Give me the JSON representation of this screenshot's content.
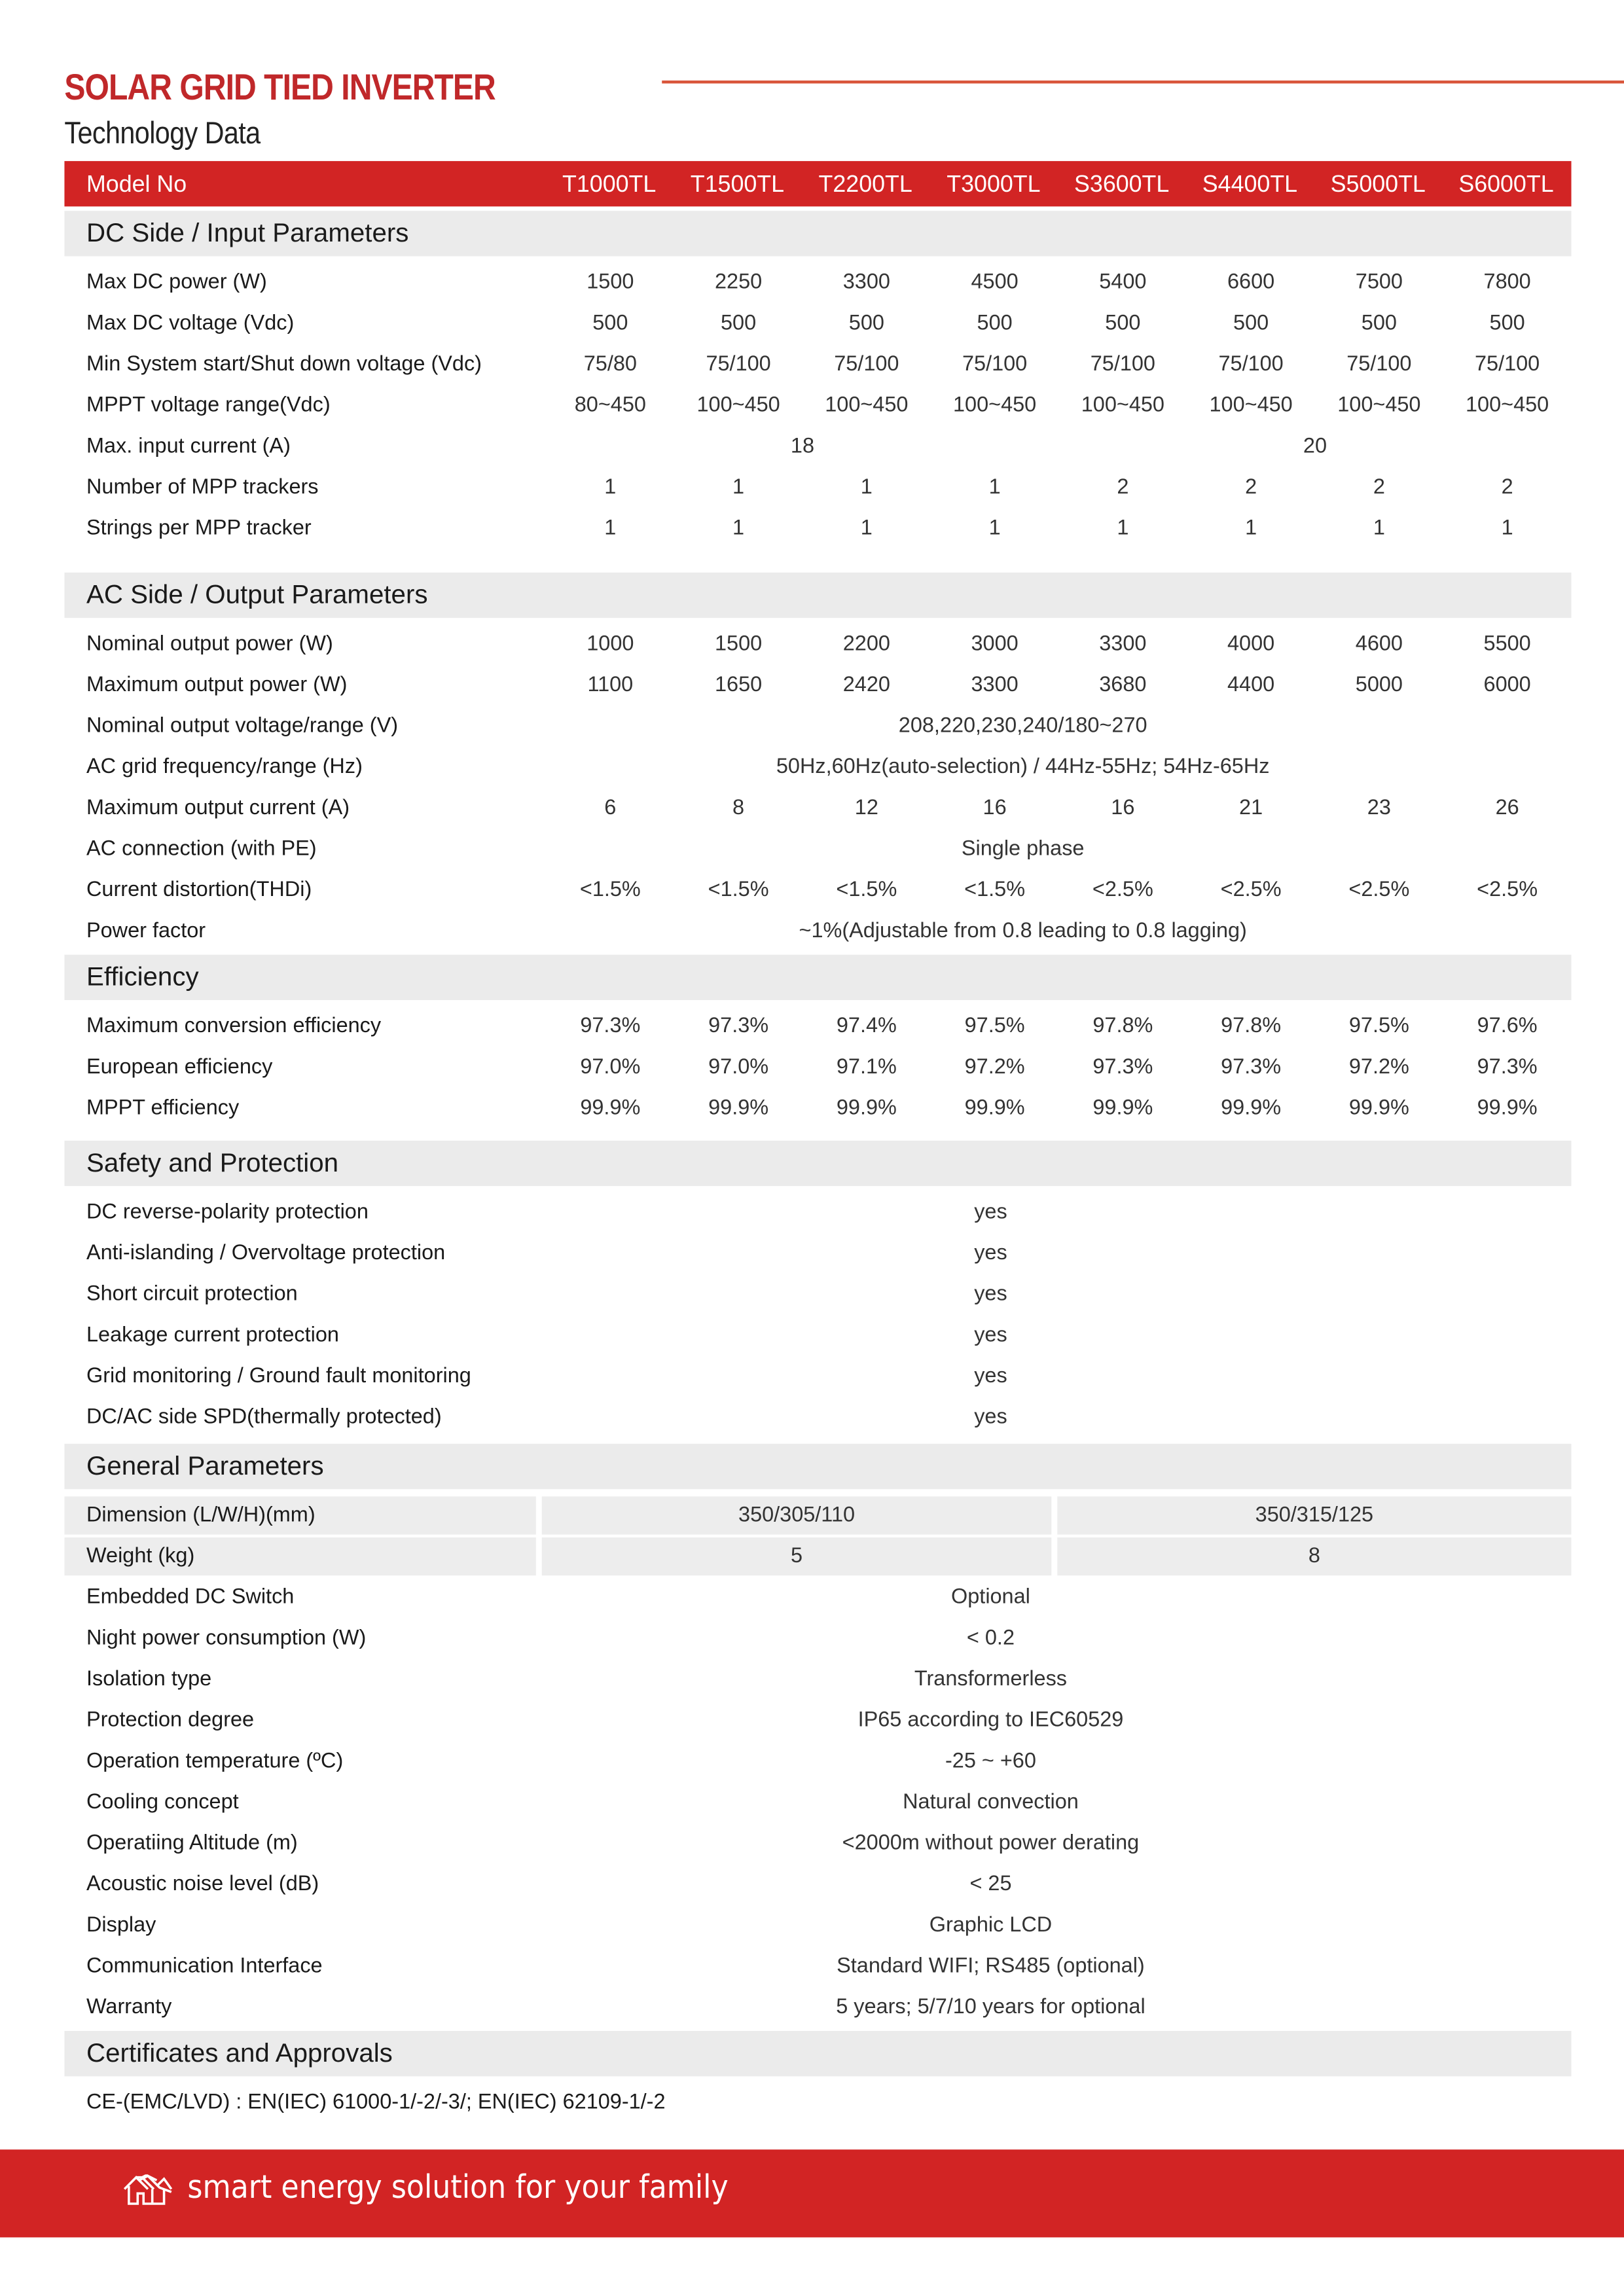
{
  "title": "SOLAR GRID TIED INVERTER",
  "subtitle": "Technology Data",
  "colors": {
    "accent": "#d22424",
    "title": "#c0282a",
    "section_bg": "#ebebeb"
  },
  "header": {
    "label": "Model No",
    "models": [
      "T1000TL",
      "T1500TL",
      "T2200TL",
      "T3000TL",
      "S3600TL",
      "S4400TL",
      "S5000TL",
      "S6000TL"
    ]
  },
  "sections": [
    {
      "title": "DC Side / Input Parameters",
      "rows": [
        {
          "label": "Max DC power (W)",
          "cells": [
            {
              "v": "1500"
            },
            {
              "v": "2250"
            },
            {
              "v": "3300"
            },
            {
              "v": "4500"
            },
            {
              "v": "5400"
            },
            {
              "v": "6600"
            },
            {
              "v": "7500"
            },
            {
              "v": "7800"
            }
          ]
        },
        {
          "label": "Max DC voltage (Vdc)",
          "cells": [
            {
              "v": "500"
            },
            {
              "v": "500"
            },
            {
              "v": "500"
            },
            {
              "v": "500"
            },
            {
              "v": "500"
            },
            {
              "v": "500"
            },
            {
              "v": "500"
            },
            {
              "v": "500"
            }
          ]
        },
        {
          "label": "Min System start/Shut down voltage (Vdc)",
          "cells": [
            {
              "v": "75/80"
            },
            {
              "v": "75/100"
            },
            {
              "v": "75/100"
            },
            {
              "v": "75/100"
            },
            {
              "v": "75/100"
            },
            {
              "v": "75/100"
            },
            {
              "v": "75/100"
            },
            {
              "v": "75/100"
            }
          ]
        },
        {
          "label": "MPPT voltage range(Vdc)",
          "cells": [
            {
              "v": "80~450"
            },
            {
              "v": "100~450"
            },
            {
              "v": "100~450"
            },
            {
              "v": "100~450"
            },
            {
              "v": "100~450"
            },
            {
              "v": "100~450"
            },
            {
              "v": "100~450"
            },
            {
              "v": "100~450"
            }
          ]
        },
        {
          "label": "Max. input current (A)",
          "cells": [
            {
              "v": "18",
              "span": 4
            },
            {
              "v": "20",
              "span": 4
            }
          ]
        },
        {
          "label": "Number of MPP trackers",
          "cells": [
            {
              "v": "1"
            },
            {
              "v": "1"
            },
            {
              "v": "1"
            },
            {
              "v": "1"
            },
            {
              "v": "2"
            },
            {
              "v": "2"
            },
            {
              "v": "2"
            },
            {
              "v": "2"
            }
          ]
        },
        {
          "label": "Strings per MPP tracker",
          "cells": [
            {
              "v": "1"
            },
            {
              "v": "1"
            },
            {
              "v": "1"
            },
            {
              "v": "1"
            },
            {
              "v": "1"
            },
            {
              "v": "1"
            },
            {
              "v": "1"
            },
            {
              "v": "1"
            }
          ]
        }
      ]
    },
    {
      "title": "AC Side / Output Parameters",
      "rows": [
        {
          "label": "Nominal output power (W)",
          "cells": [
            {
              "v": "1000"
            },
            {
              "v": "1500"
            },
            {
              "v": "2200"
            },
            {
              "v": "3000"
            },
            {
              "v": "3300"
            },
            {
              "v": "4000"
            },
            {
              "v": "4600"
            },
            {
              "v": "5500"
            }
          ]
        },
        {
          "label": "Maximum output power (W)",
          "cells": [
            {
              "v": "1100"
            },
            {
              "v": "1650"
            },
            {
              "v": "2420"
            },
            {
              "v": "3300"
            },
            {
              "v": "3680"
            },
            {
              "v": "4400"
            },
            {
              "v": "5000"
            },
            {
              "v": "6000"
            }
          ]
        },
        {
          "label": "Nominal output voltage/range (V)",
          "cells": [
            {
              "v": "208,220,230,240/180~270",
              "span": 8
            }
          ]
        },
        {
          "label": "AC grid frequency/range (Hz)",
          "cells": [
            {
              "v": "50Hz,60Hz(auto-selection) / 44Hz-55Hz; 54Hz-65Hz",
              "span": 8
            }
          ]
        },
        {
          "label": "Maximum output current (A)",
          "cells": [
            {
              "v": "6"
            },
            {
              "v": "8"
            },
            {
              "v": "12"
            },
            {
              "v": "16"
            },
            {
              "v": "16"
            },
            {
              "v": "21"
            },
            {
              "v": "23"
            },
            {
              "v": "26"
            }
          ]
        },
        {
          "label": "AC connection (with PE)",
          "cells": [
            {
              "v": "Single phase",
              "span": 8
            }
          ]
        },
        {
          "label": "Current distortion(THDi)",
          "cells": [
            {
              "v": "<1.5%"
            },
            {
              "v": "<1.5%"
            },
            {
              "v": "<1.5%"
            },
            {
              "v": "<1.5%"
            },
            {
              "v": "<2.5%"
            },
            {
              "v": "<2.5%"
            },
            {
              "v": "<2.5%"
            },
            {
              "v": "<2.5%"
            }
          ]
        },
        {
          "label": "Power factor",
          "cells": [
            {
              "v": "~1%(Adjustable from 0.8 leading to 0.8 lagging)",
              "span": 8
            }
          ]
        }
      ]
    },
    {
      "title": "Efficiency",
      "rows": [
        {
          "label": "Maximum conversion efficiency",
          "cells": [
            {
              "v": "97.3%"
            },
            {
              "v": "97.3%"
            },
            {
              "v": "97.4%"
            },
            {
              "v": "97.5%"
            },
            {
              "v": "97.8%"
            },
            {
              "v": "97.8%"
            },
            {
              "v": "97.5%"
            },
            {
              "v": "97.6%"
            }
          ]
        },
        {
          "label": "European efficiency",
          "cells": [
            {
              "v": "97.0%"
            },
            {
              "v": "97.0%"
            },
            {
              "v": "97.1%"
            },
            {
              "v": "97.2%"
            },
            {
              "v": "97.3%"
            },
            {
              "v": "97.3%"
            },
            {
              "v": "97.2%"
            },
            {
              "v": "97.3%"
            }
          ]
        },
        {
          "label": "MPPT efficiency",
          "cells": [
            {
              "v": "99.9%"
            },
            {
              "v": "99.9%"
            },
            {
              "v": "99.9%"
            },
            {
              "v": "99.9%"
            },
            {
              "v": "99.9%"
            },
            {
              "v": "99.9%"
            },
            {
              "v": "99.9%"
            },
            {
              "v": "99.9%"
            }
          ]
        }
      ]
    },
    {
      "title": "Safety and Protection",
      "rows": [
        {
          "label": "DC reverse-polarity protection",
          "cells": [
            {
              "v": "yes",
              "span": 8
            }
          ]
        },
        {
          "label": "Anti-islanding / Overvoltage protection",
          "cells": [
            {
              "v": "yes",
              "span": 8
            }
          ]
        },
        {
          "label": "Short circuit protection",
          "cells": [
            {
              "v": "yes",
              "span": 8
            }
          ]
        },
        {
          "label": "Leakage current protection",
          "cells": [
            {
              "v": "yes",
              "span": 8
            }
          ]
        },
        {
          "label": "Grid monitoring / Ground fault monitoring",
          "cells": [
            {
              "v": "yes",
              "span": 8
            }
          ]
        },
        {
          "label": "DC/AC side SPD(thermally protected)",
          "cells": [
            {
              "v": "yes",
              "span": 8
            }
          ]
        }
      ]
    },
    {
      "title": "General Parameters",
      "rows": [
        {
          "label": "Dimension (L/W/H)(mm)",
          "cells": [
            {
              "v": "350/305/110",
              "span": 4
            },
            {
              "v": "350/315/125",
              "span": 4
            }
          ]
        },
        {
          "label": "Weight (kg)",
          "cells": [
            {
              "v": "5",
              "span": 4
            },
            {
              "v": "8",
              "span": 4
            }
          ]
        },
        {
          "label": "Embedded DC Switch",
          "cells": [
            {
              "v": "Optional",
              "span": 8
            }
          ]
        },
        {
          "label": "Night power consumption (W)",
          "cells": [
            {
              "v": "< 0.2",
              "span": 8
            }
          ]
        },
        {
          "label": "Isolation type",
          "cells": [
            {
              "v": "Transformerless",
              "span": 8
            }
          ]
        },
        {
          "label": "Protection degree",
          "cells": [
            {
              "v": "IP65 according to IEC60529",
              "span": 8
            }
          ]
        },
        {
          "label": "Operation temperature (ºC)",
          "cells": [
            {
              "v": "-25 ~ +60",
              "span": 8
            }
          ]
        },
        {
          "label": "Cooling concept",
          "cells": [
            {
              "v": "Natural convection",
              "span": 8
            }
          ]
        },
        {
          "label": "Operatiing Altitude (m)",
          "cells": [
            {
              "v": "<2000m without power derating",
              "span": 8
            }
          ]
        },
        {
          "label": "Acoustic noise level (dB)",
          "cells": [
            {
              "v": "< 25",
              "span": 8
            }
          ]
        },
        {
          "label": "Display",
          "cells": [
            {
              "v": "Graphic LCD",
              "span": 8
            }
          ]
        },
        {
          "label": "Communication Interface",
          "cells": [
            {
              "v": "Standard WIFI; RS485 (optional)",
              "span": 8
            }
          ]
        },
        {
          "label": "Warranty",
          "cells": [
            {
              "v": "5 years; 5/7/10 years for optional",
              "span": 8
            }
          ]
        }
      ]
    }
  ],
  "certificates": {
    "title": "Certificates and Approvals",
    "text": "CE-(EMC/LVD) : EN(IEC) 61000-1/-2/-3/; EN(IEC) 62109-1/-2"
  },
  "footer": {
    "icon": "house-icon",
    "tagline": "smart energy solution for your family"
  }
}
